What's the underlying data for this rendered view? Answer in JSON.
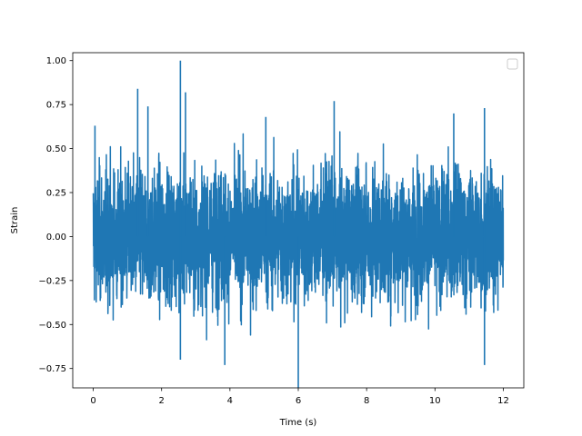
{
  "chart_data": {
    "type": "line",
    "title": "",
    "xlabel": "Time (s)",
    "ylabel": "Strain",
    "xlim": [
      -0.6,
      12.6
    ],
    "ylim": [
      -0.86,
      1.045
    ],
    "xticks": [
      0,
      2,
      4,
      6,
      8,
      10,
      12
    ],
    "xtick_labels": [
      "0",
      "2",
      "4",
      "6",
      "8",
      "10",
      "12"
    ],
    "yticks": [
      -0.75,
      -0.5,
      -0.25,
      0.0,
      0.25,
      0.5,
      0.75,
      1.0
    ],
    "ytick_labels": [
      "−0.75",
      "−0.50",
      "−0.25",
      "0.00",
      "0.25",
      "0.50",
      "0.75",
      "1.00"
    ],
    "grid": false,
    "legend": {
      "position": "upper right",
      "entries": []
    },
    "series": [
      {
        "color": "#1f77b4",
        "x_range": [
          0,
          12
        ],
        "y_min": -0.86,
        "y_max": 1.0,
        "peaks": [
          {
            "x": 0.05,
            "y": 0.63
          },
          {
            "x": 1.3,
            "y": 0.84
          },
          {
            "x": 1.6,
            "y": 0.74
          },
          {
            "x": 2.55,
            "y": 1.0
          },
          {
            "x": 2.7,
            "y": 0.82
          },
          {
            "x": 7.05,
            "y": 0.77
          },
          {
            "x": 11.45,
            "y": 0.73
          },
          {
            "x": 10.55,
            "y": 0.7
          },
          {
            "x": 5.05,
            "y": 0.68
          },
          {
            "x": 6.0,
            "y": -0.86
          },
          {
            "x": 3.85,
            "y": -0.73
          },
          {
            "x": 11.45,
            "y": -0.73
          },
          {
            "x": 2.55,
            "y": -0.7
          }
        ]
      }
    ]
  }
}
